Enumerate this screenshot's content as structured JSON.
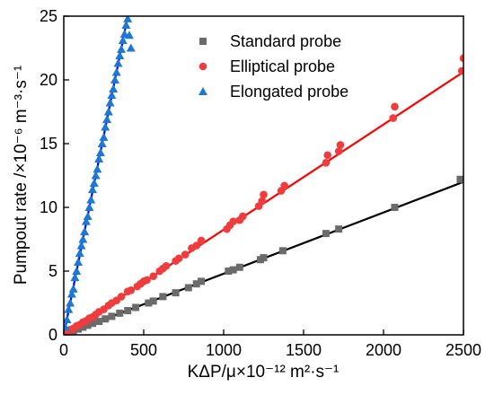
{
  "chart_data": {
    "type": "scatter",
    "xlabel": "KΔP/μ×10⁻¹² m²·s⁻¹",
    "ylabel": "Pumpout rate /×10⁻⁶ m⁻³·s⁻¹",
    "xlim": [
      0,
      2500
    ],
    "ylim": [
      0,
      25
    ],
    "x_ticks": [
      "0",
      "500",
      "1000",
      "1500",
      "2000",
      "2500"
    ],
    "y_ticks": [
      "0",
      "5",
      "10",
      "15",
      "20",
      "25"
    ],
    "legend_position": "top-right",
    "series": [
      {
        "name": "Standard probe",
        "marker": "square",
        "color": "#6b6b6b",
        "fit_color": "#000000",
        "fit_slope": 0.0048,
        "x": [
          30,
          60,
          90,
          120,
          150,
          180,
          220,
          260,
          300,
          350,
          400,
          450,
          530,
          560,
          620,
          700,
          780,
          830,
          860,
          1030,
          1060,
          1100,
          1230,
          1250,
          1370,
          1640,
          1720,
          2070,
          2480
        ],
        "y": [
          0.15,
          0.3,
          0.45,
          0.6,
          0.75,
          0.9,
          1.05,
          1.25,
          1.45,
          1.7,
          1.9,
          2.15,
          2.5,
          2.65,
          3.0,
          3.3,
          3.7,
          4.0,
          4.2,
          5.0,
          5.1,
          5.3,
          5.9,
          6.05,
          6.6,
          7.95,
          8.3,
          10.0,
          12.2
        ]
      },
      {
        "name": "Elliptical probe",
        "marker": "circle",
        "color": "#f03c3c",
        "fit_color": "#ff0000",
        "fit_slope": 0.00825,
        "x": [
          20,
          40,
          60,
          80,
          100,
          120,
          140,
          160,
          180,
          200,
          220,
          250,
          280,
          300,
          330,
          360,
          400,
          420,
          460,
          480,
          500,
          520,
          560,
          600,
          620,
          640,
          700,
          720,
          760,
          800,
          830,
          860,
          1020,
          1040,
          1060,
          1100,
          1120,
          1220,
          1240,
          1250,
          1360,
          1380,
          1640,
          1650,
          1720,
          1730,
          2060,
          2070,
          2490,
          2500
        ],
        "y": [
          0.3,
          0.4,
          0.5,
          0.7,
          0.8,
          1.0,
          1.1,
          1.3,
          1.4,
          1.6,
          1.8,
          2.0,
          2.3,
          2.5,
          2.7,
          3.0,
          3.4,
          3.5,
          3.8,
          4.0,
          4.2,
          4.3,
          4.6,
          5.0,
          5.2,
          5.4,
          5.8,
          6.0,
          6.3,
          6.8,
          7.0,
          7.4,
          8.3,
          8.6,
          8.9,
          9.0,
          9.3,
          10.1,
          10.5,
          11.0,
          11.3,
          11.7,
          13.5,
          14.1,
          14.4,
          14.9,
          17.0,
          17.9,
          20.7,
          21.7
        ]
      },
      {
        "name": "Elongated probe",
        "marker": "triangle",
        "color": "#1f77d4",
        "fit_color": "#0000ff",
        "fit_slope": 0.0625,
        "x": [
          10,
          20,
          30,
          40,
          50,
          60,
          70,
          80,
          90,
          100,
          110,
          120,
          130,
          140,
          150,
          160,
          170,
          180,
          190,
          200,
          210,
          220,
          230,
          240,
          250,
          260,
          270,
          280,
          290,
          300,
          310,
          320,
          330,
          340,
          350,
          360,
          370,
          380,
          390,
          400,
          410,
          420
        ],
        "y": [
          0.6,
          1.2,
          2.0,
          2.5,
          3.2,
          3.6,
          4.5,
          5.0,
          5.7,
          6.4,
          7.0,
          7.5,
          8.1,
          8.9,
          9.3,
          10.0,
          10.6,
          11.4,
          11.9,
          12.5,
          13.0,
          13.8,
          14.3,
          15.0,
          15.5,
          16.3,
          16.9,
          17.5,
          18.2,
          18.8,
          19.3,
          20.0,
          20.6,
          21.3,
          21.9,
          22.4,
          23.1,
          23.6,
          24.3,
          24.8,
          23.5,
          22.5
        ]
      }
    ]
  }
}
